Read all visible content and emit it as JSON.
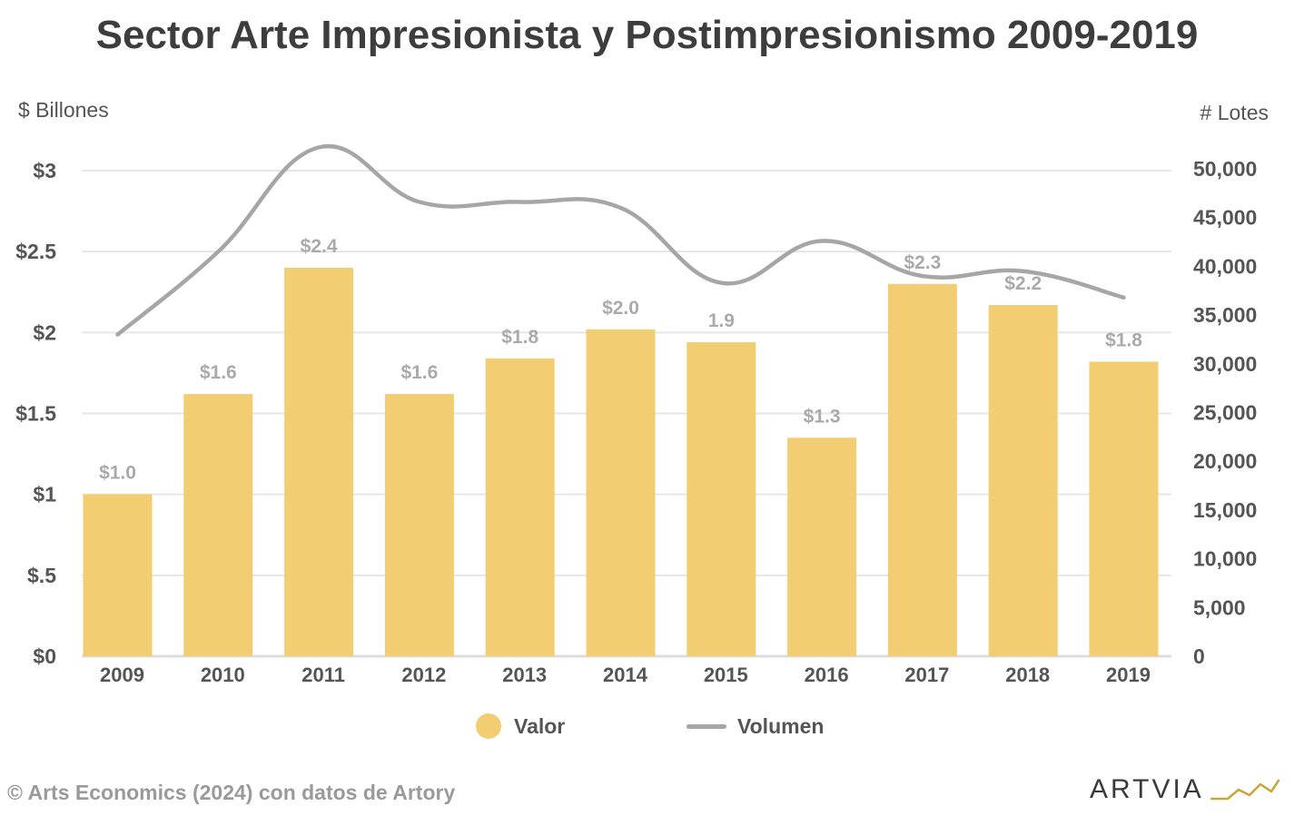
{
  "chart_data": {
    "type": "bar",
    "title": "Sector Arte Impresionista y Postimpresionismo 2009-2019",
    "ylabel_left": "$ Billones",
    "ylabel_right": "# Lotes",
    "categories": [
      "2009",
      "2010",
      "2011",
      "2012",
      "2013",
      "2014",
      "2015",
      "2016",
      "2017",
      "2018",
      "2019"
    ],
    "series": [
      {
        "name": "Valor",
        "type": "bar",
        "axis": "left",
        "color": "#f2cd72",
        "values": [
          1.0,
          1.62,
          2.4,
          1.62,
          1.84,
          2.02,
          1.94,
          1.35,
          2.3,
          2.17,
          1.82
        ],
        "labels": [
          "$1.0",
          "$1.6",
          "$2.4",
          "$1.6",
          "$1.8",
          "$2.0",
          "1.9",
          "$1.3",
          "$2.3",
          "$2.2",
          "$1.8"
        ]
      },
      {
        "name": "Volumen",
        "type": "line",
        "axis": "right",
        "color": "#a6a6a6",
        "values": [
          33000,
          41500,
          52200,
          46600,
          46600,
          46000,
          38300,
          42600,
          39000,
          39500,
          36800
        ]
      }
    ],
    "ylim_left": [
      0,
      3
    ],
    "yticks_left": [
      {
        "value": 0,
        "label": "$0"
      },
      {
        "value": 0.5,
        "label": "$.5"
      },
      {
        "value": 1,
        "label": "$1"
      },
      {
        "value": 1.5,
        "label": "$1.5"
      },
      {
        "value": 2,
        "label": "$2"
      },
      {
        "value": 2.5,
        "label": "$2.5"
      },
      {
        "value": 3,
        "label": "$3"
      }
    ],
    "ylim_right": [
      0,
      50000
    ],
    "yticks_right": [
      {
        "value": 0,
        "label": "0"
      },
      {
        "value": 5000,
        "label": "5,000"
      },
      {
        "value": 10000,
        "label": "10,000"
      },
      {
        "value": 15000,
        "label": "15,000"
      },
      {
        "value": 20000,
        "label": "20,000"
      },
      {
        "value": 25000,
        "label": "25,000"
      },
      {
        "value": 30000,
        "label": "30,000"
      },
      {
        "value": 35000,
        "label": "35,000"
      },
      {
        "value": 40000,
        "label": "40,000"
      },
      {
        "value": 45000,
        "label": "45,000"
      },
      {
        "value": 50000,
        "label": "50,000"
      }
    ],
    "grid": true,
    "legend_position": "bottom-center"
  },
  "legend": {
    "valor_label": "Valor",
    "volumen_label": "Volumen"
  },
  "footer": {
    "source": "©  Arts Economics (2024) con datos de Artory",
    "logo_text": "ARTVIA"
  }
}
